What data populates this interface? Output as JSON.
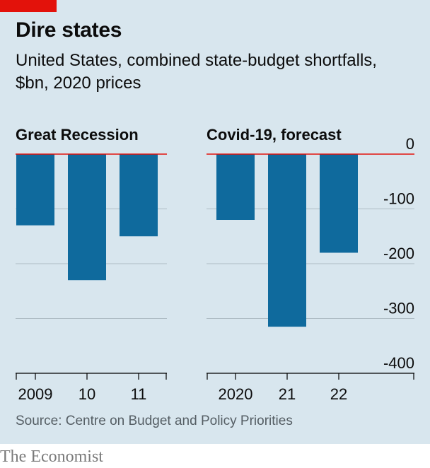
{
  "header": {
    "title": "Dire states",
    "subtitle": "United States, combined state-budget shortfalls, $bn, 2020 prices"
  },
  "footer": {
    "source": "Source: Centre on Budget and Policy Priorities",
    "brand": "The Economist"
  },
  "colors": {
    "panel_bg": "#d8e6ee",
    "bar": "#0f6a9d",
    "zero_line": "#e3120b",
    "grid": "#aebcc4",
    "axis": "#000000",
    "tag": "#e3120b"
  },
  "chart_data": [
    {
      "type": "bar",
      "title": "Great Recession",
      "categories": [
        "2009",
        "10",
        "11"
      ],
      "values": [
        -130,
        -230,
        -150
      ],
      "ylim": [
        -400,
        0
      ],
      "yticks": [
        0,
        -100,
        -200,
        -300,
        -400
      ],
      "grid": true
    },
    {
      "type": "bar",
      "title": "Covid-19, forecast",
      "categories": [
        "2020",
        "21",
        "22"
      ],
      "values": [
        -120,
        -315,
        -180
      ],
      "ylim": [
        -400,
        0
      ],
      "yticks": [
        "0",
        "-100",
        "-200",
        "-300",
        "-400"
      ],
      "grid": true,
      "axis_labels_side": "right"
    }
  ]
}
